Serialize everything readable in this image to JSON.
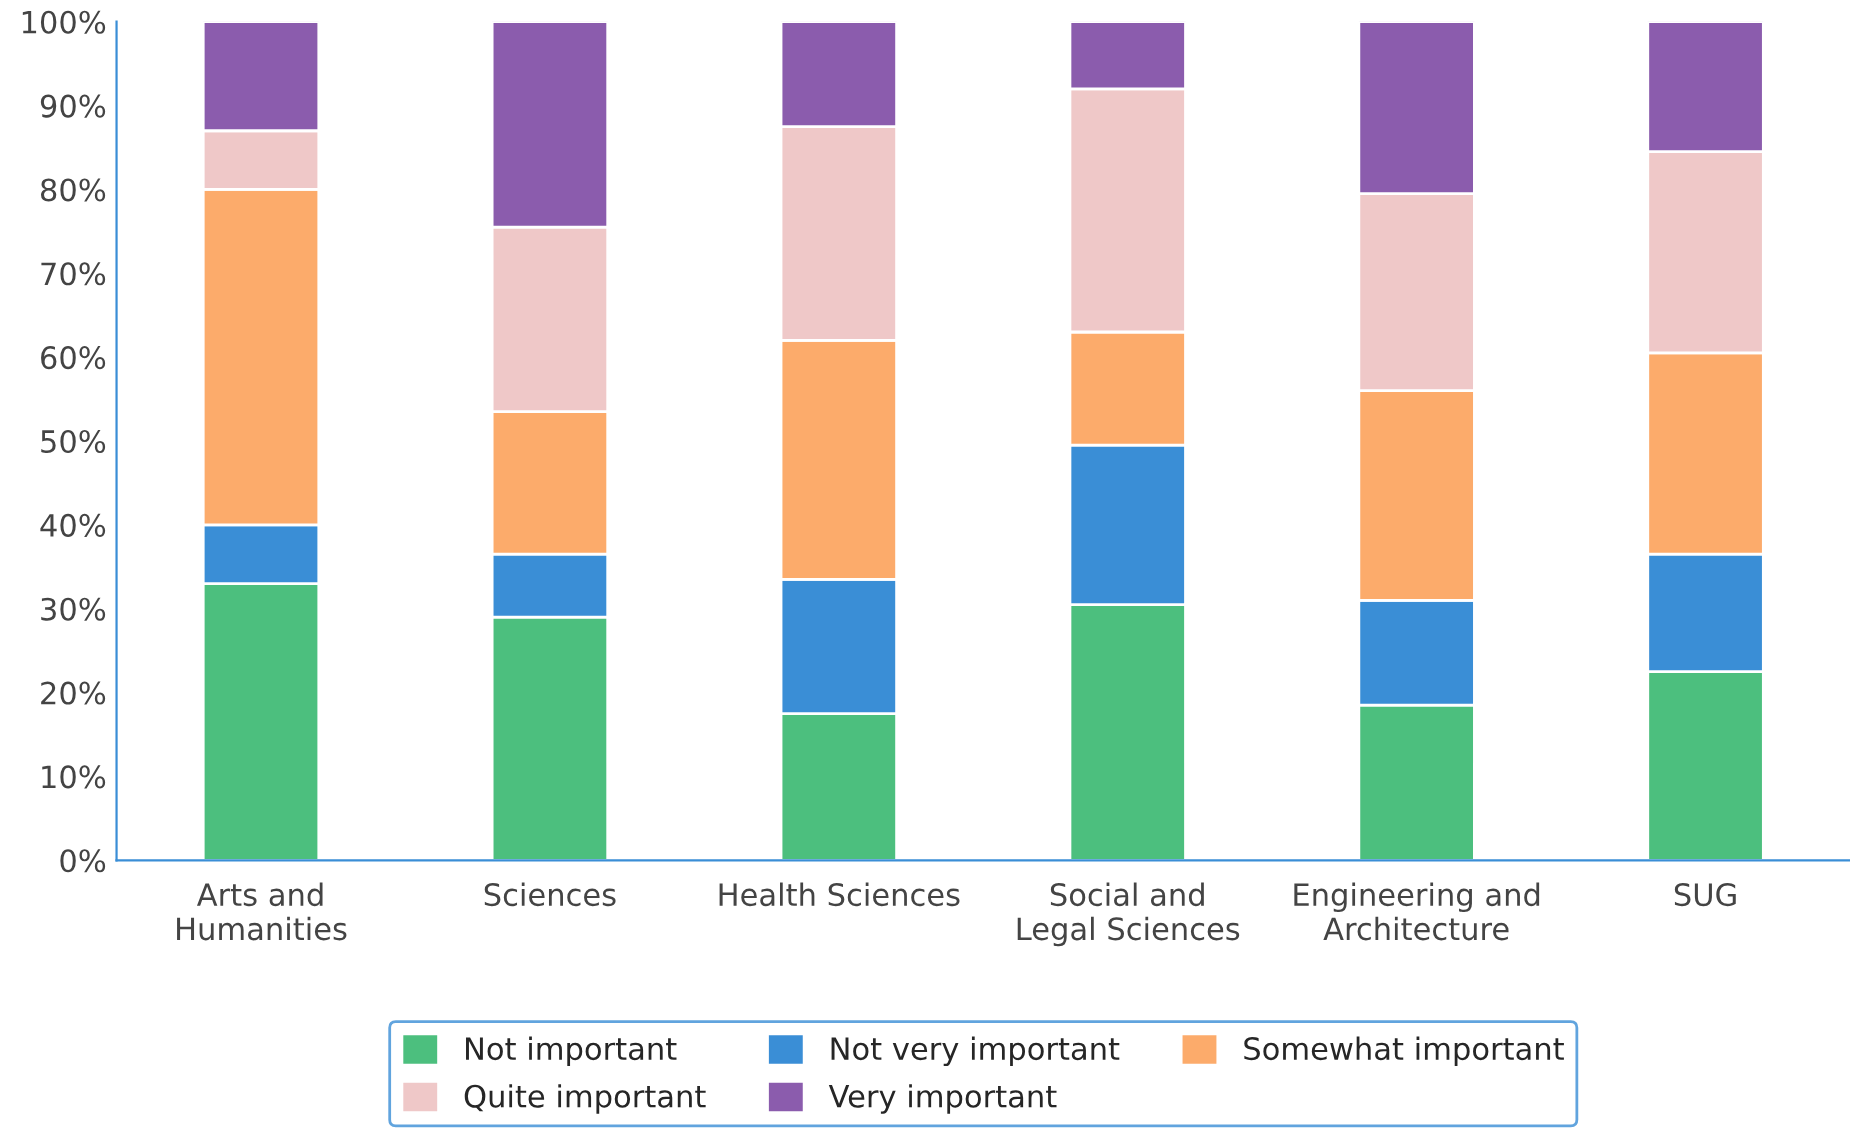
{
  "chart_data": {
    "type": "bar",
    "stacked": true,
    "categories": [
      "Arts and\nHumanities",
      "Sciences",
      "Health Sciences",
      "Social and\nLegal Sciences",
      "Engineering and\nArchitecture",
      "SUG"
    ],
    "series": [
      {
        "name": "Not important",
        "color": "#4cbf7e",
        "values": [
          33,
          29,
          17.5,
          30.5,
          18.5,
          22.5
        ]
      },
      {
        "name": "Not very important",
        "color": "#3a8ed6",
        "values": [
          7,
          7.5,
          16,
          19,
          12.5,
          14
        ]
      },
      {
        "name": "Somewhat important",
        "color": "#fcab6b",
        "values": [
          40,
          17,
          28.5,
          13.5,
          25,
          24
        ]
      },
      {
        "name": "Quite important",
        "color": "#efc8c8",
        "values": [
          7,
          22,
          25.5,
          29,
          23.5,
          24
        ]
      },
      {
        "name": "Very important",
        "color": "#8b5cad",
        "values": [
          13,
          24.5,
          12.5,
          8,
          20.5,
          15.5
        ]
      }
    ],
    "ylim": [
      0,
      100
    ],
    "yticks": [
      {
        "value": 0,
        "label": "0%"
      },
      {
        "value": 10,
        "label": "10%"
      },
      {
        "value": 20,
        "label": "20%"
      },
      {
        "value": 30,
        "label": "30%"
      },
      {
        "value": 40,
        "label": "40%"
      },
      {
        "value": 50,
        "label": "50%"
      },
      {
        "value": 60,
        "label": "60%"
      },
      {
        "value": 70,
        "label": "70%"
      },
      {
        "value": 80,
        "label": "80%"
      },
      {
        "value": 90,
        "label": "90%"
      },
      {
        "value": 100,
        "label": "100%"
      }
    ],
    "grid": false,
    "legend": "bottom"
  }
}
